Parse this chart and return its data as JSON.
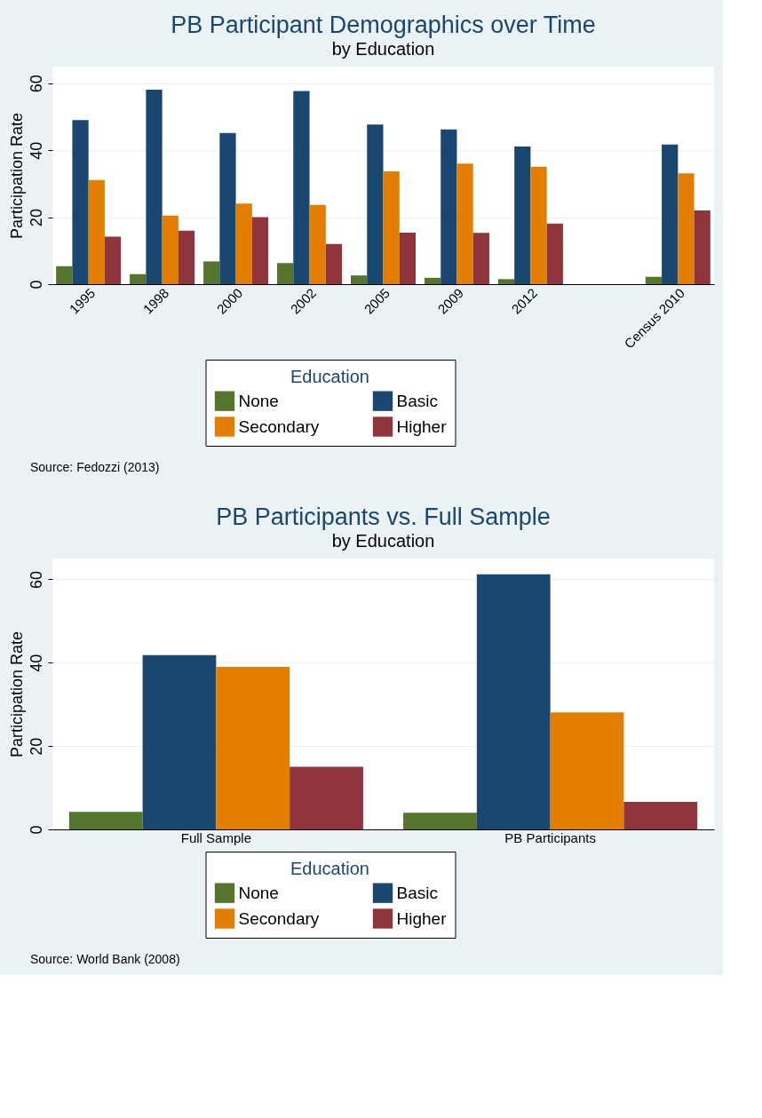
{
  "chart_data": [
    {
      "type": "bar",
      "title": "PB Participant Demographics over Time",
      "subtitle": "by Education",
      "ylabel": "Participation Rate",
      "legend_title": "Education",
      "categories": [
        "1995",
        "1998",
        "2000",
        "2002",
        "2005",
        "2009",
        "2012",
        null,
        "Census 2010"
      ],
      "series": [
        {
          "name": "None",
          "color": "#55752f",
          "values": [
            5.4,
            3.0,
            6.8,
            6.3,
            2.6,
            1.9,
            1.5,
            null,
            2.2
          ]
        },
        {
          "name": "Basic",
          "color": "#1a476f",
          "values": [
            49.0,
            58.1,
            45.2,
            57.7,
            47.7,
            46.2,
            41.1,
            null,
            41.7
          ]
        },
        {
          "name": "Secondary",
          "color": "#e37e00",
          "values": [
            31.1,
            20.5,
            24.1,
            23.7,
            33.7,
            36.0,
            35.1,
            null,
            33.1
          ]
        },
        {
          "name": "Higher",
          "color": "#90353b",
          "values": [
            14.2,
            16.0,
            20.0,
            12.0,
            15.4,
            15.3,
            18.1,
            null,
            22.0
          ]
        }
      ],
      "ylim": [
        0,
        65
      ],
      "yticks": [
        0,
        20,
        40,
        60
      ],
      "grid": "y",
      "legend": "bottom",
      "annotations": [
        "Source: Fedozzi (2013)"
      ]
    },
    {
      "type": "bar",
      "title": "PB Participants vs. Full Sample",
      "subtitle": "by Education",
      "ylabel": "Participation Rate",
      "legend_title": "Education",
      "categories": [
        "Full Sample",
        "PB Participants"
      ],
      "series": [
        {
          "name": "None",
          "color": "#55752f",
          "values": [
            4.2,
            4.0
          ]
        },
        {
          "name": "Basic",
          "color": "#1a476f",
          "values": [
            41.8,
            61.2
          ]
        },
        {
          "name": "Secondary",
          "color": "#e37e00",
          "values": [
            39.0,
            28.1
          ]
        },
        {
          "name": "Higher",
          "color": "#90353b",
          "values": [
            15.0,
            6.6
          ]
        }
      ],
      "ylim": [
        0,
        65
      ],
      "yticks": [
        0,
        20,
        40,
        60
      ],
      "grid": "y",
      "legend": "bottom",
      "annotations": [
        "Source: World Bank (2008)"
      ]
    }
  ]
}
